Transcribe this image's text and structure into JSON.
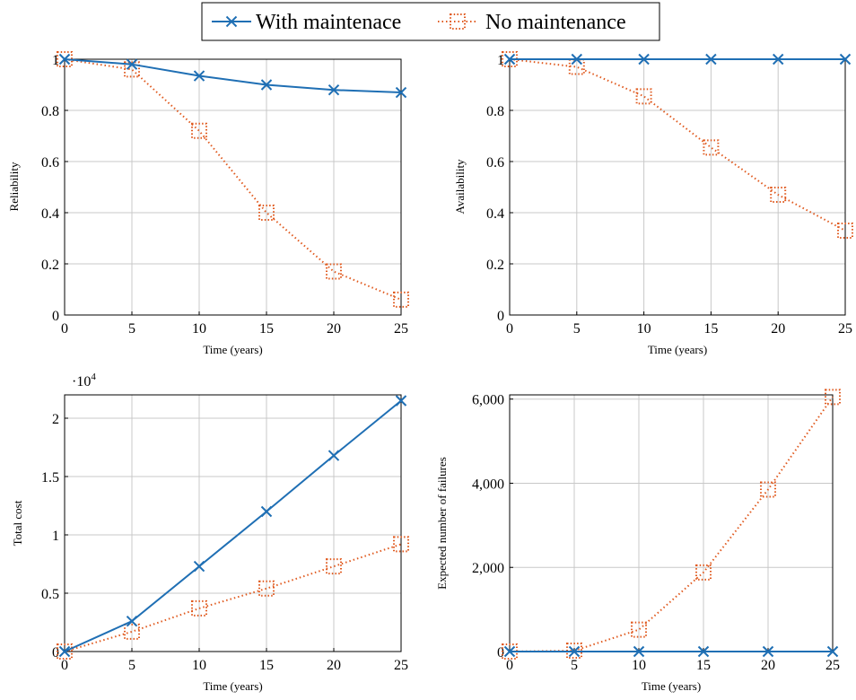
{
  "legend": {
    "items": [
      {
        "label": "With maintenace",
        "color": "#1f6fb4",
        "marker": "x-mark",
        "style": "solid"
      },
      {
        "label": "No maintenance",
        "color": "#e05a1f",
        "marker": "dotted-square",
        "style": "dotted"
      }
    ]
  },
  "chart_data": [
    {
      "type": "line",
      "xlabel": "Time (years)",
      "ylabel": "Reliability",
      "xlim": [
        0,
        25
      ],
      "ylim": [
        0,
        1
      ],
      "xticks": [
        0,
        5,
        10,
        15,
        20,
        25
      ],
      "yticks": [
        0,
        0.2,
        0.4,
        0.6,
        0.8,
        1
      ],
      "ytick_labels": [
        "0",
        "0.2",
        "0.4",
        "0.6",
        "0.8",
        "1"
      ],
      "grid": true,
      "x": [
        0,
        5,
        10,
        15,
        20,
        25
      ],
      "series": [
        {
          "name": "With maintenace",
          "values": [
            1.0,
            0.98,
            0.935,
            0.9,
            0.88,
            0.87
          ]
        },
        {
          "name": "No maintenance",
          "values": [
            1.0,
            0.96,
            0.72,
            0.4,
            0.17,
            0.06
          ]
        }
      ]
    },
    {
      "type": "line",
      "xlabel": "Time (years)",
      "ylabel": "Availability",
      "xlim": [
        0,
        25
      ],
      "ylim": [
        0,
        1
      ],
      "xticks": [
        0,
        5,
        10,
        15,
        20,
        25
      ],
      "yticks": [
        0,
        0.2,
        0.4,
        0.6,
        0.8,
        1
      ],
      "ytick_labels": [
        "0",
        "0.2",
        "0.4",
        "0.6",
        "0.8",
        "1"
      ],
      "grid": true,
      "x": [
        0,
        5,
        10,
        15,
        20,
        25
      ],
      "series": [
        {
          "name": "With maintenace",
          "values": [
            1.0,
            1.0,
            1.0,
            1.0,
            1.0,
            1.0
          ]
        },
        {
          "name": "No maintenance",
          "values": [
            1.0,
            0.97,
            0.855,
            0.655,
            0.47,
            0.33
          ]
        }
      ]
    },
    {
      "type": "line",
      "xlabel": "Time (years)",
      "ylabel": "Total cost",
      "xlim": [
        0,
        25
      ],
      "ylim": [
        0,
        22000
      ],
      "xticks": [
        0,
        5,
        10,
        15,
        20,
        25
      ],
      "yticks": [
        0,
        5000,
        10000,
        15000,
        20000
      ],
      "ytick_labels": [
        "0",
        "0.5",
        "1",
        "1.5",
        "2"
      ],
      "scale_label": "·10",
      "scale_exponent": "4",
      "grid": true,
      "x": [
        0,
        5,
        10,
        15,
        20,
        25
      ],
      "series": [
        {
          "name": "With maintenace",
          "values": [
            0,
            2600,
            7300,
            12000,
            16800,
            21500
          ]
        },
        {
          "name": "No maintenance",
          "values": [
            0,
            1700,
            3700,
            5400,
            7300,
            9200
          ]
        }
      ]
    },
    {
      "type": "line",
      "xlabel": "Time (years)",
      "ylabel": "Expected number of failures",
      "xlim": [
        0,
        25
      ],
      "ylim": [
        0,
        6100
      ],
      "xticks": [
        0,
        5,
        10,
        15,
        20,
        25
      ],
      "yticks": [
        0,
        2000,
        4000,
        6000
      ],
      "ytick_labels": [
        "0",
        "2,000",
        "4,000",
        "6,000"
      ],
      "grid": true,
      "x": [
        0,
        5,
        10,
        15,
        20,
        25
      ],
      "series": [
        {
          "name": "With maintenace",
          "values": [
            0,
            0,
            0,
            0,
            0,
            0
          ]
        },
        {
          "name": "No maintenance",
          "values": [
            0,
            20,
            520,
            1880,
            3850,
            6050
          ]
        }
      ]
    }
  ]
}
